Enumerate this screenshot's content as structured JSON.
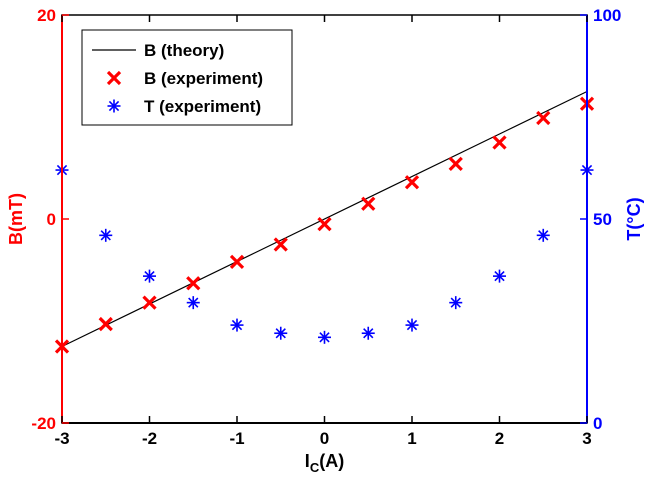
{
  "chart_data": {
    "type": "scatter",
    "title": "",
    "xlabel": {
      "main": "I",
      "sub": "C",
      "rest": "(A)"
    },
    "ylabel_left": "B(mT)",
    "ylabel_right": "T(°C)",
    "xlim": [
      -3,
      3
    ],
    "ylim_left": [
      -20,
      20
    ],
    "ylim_right": [
      0,
      100
    ],
    "x_ticks": [
      "-3",
      "-2",
      "-1",
      "0",
      "1",
      "2",
      "3"
    ],
    "y_ticks_left": [
      "-20",
      "0",
      "20"
    ],
    "y_ticks_right": [
      "0",
      "50",
      "100"
    ],
    "grid": false,
    "legend_position": "top-left",
    "colors": {
      "left_axis": "#ff0000",
      "right_axis": "#0000ff",
      "theory": "#000000",
      "b_exp": "#ff0000",
      "t_exp": "#0000ff"
    },
    "series": [
      {
        "name": "B (theory)",
        "kind": "line",
        "axis": "left",
        "x": [
          -3,
          3
        ],
        "y": [
          -12.5,
          12.5
        ]
      },
      {
        "name": "B (experiment)",
        "kind": "x-marker",
        "axis": "left",
        "x": [
          -3,
          -2.5,
          -2,
          -1.5,
          -1,
          -0.5,
          0,
          0.5,
          1,
          1.5,
          2,
          2.5,
          3
        ],
        "y": [
          -12.5,
          -10.3,
          -8.2,
          -6.3,
          -4.2,
          -2.5,
          -0.5,
          1.5,
          3.6,
          5.4,
          7.5,
          9.9,
          11.3
        ]
      },
      {
        "name": "T (experiment)",
        "kind": "star-marker",
        "axis": "right",
        "x": [
          -3,
          -2.5,
          -2,
          -1.5,
          -1,
          -0.5,
          0,
          0.5,
          1,
          1.5,
          2,
          2.5,
          3
        ],
        "y": [
          62,
          46,
          36,
          29.5,
          24,
          22,
          21,
          22,
          24,
          29.5,
          36,
          46,
          62
        ]
      }
    ]
  }
}
